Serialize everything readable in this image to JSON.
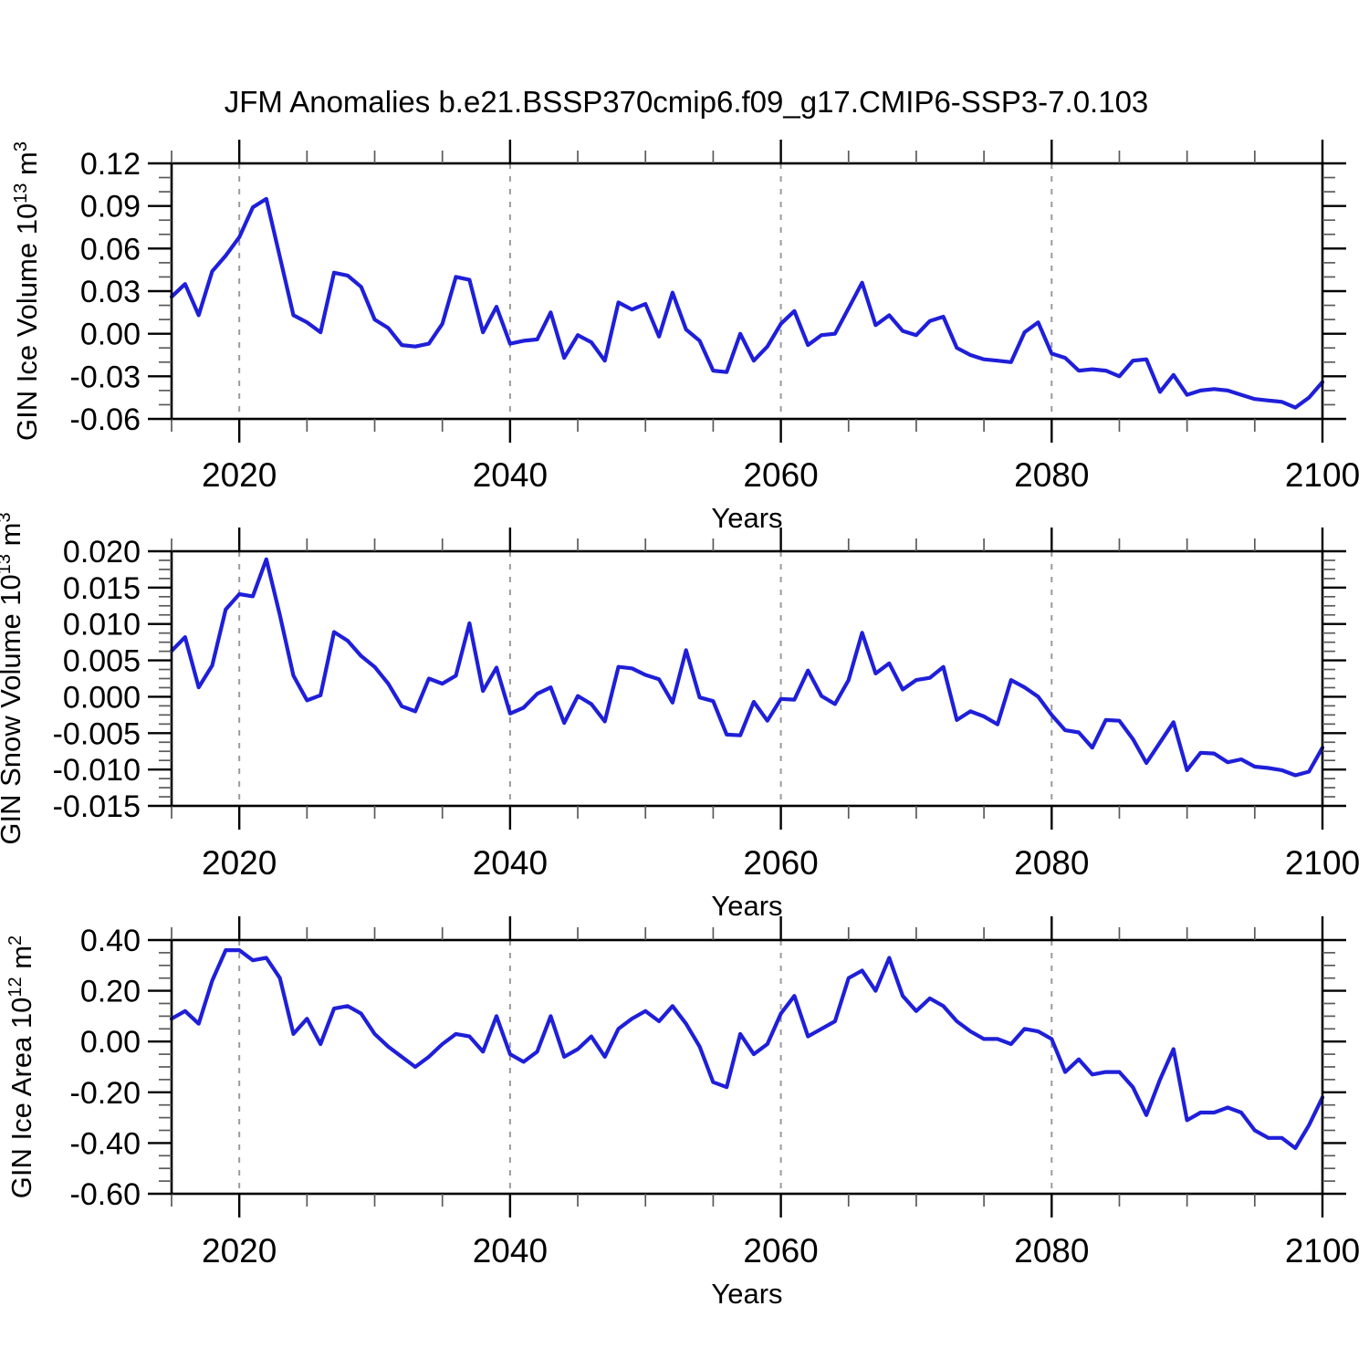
{
  "title": "JFM Anomalies b.e21.BSSP370cmip6.f09_g17.CMIP6-SSP3-7.0.103",
  "colors": {
    "line": "#1f1fd9",
    "axis": "#000000",
    "major_tick": "#000000",
    "minor_tick": "#5a5a5a",
    "grid": "#9a9a9a",
    "background": "#ffffff"
  },
  "chart_data": {
    "type": "line",
    "title": "JFM Anomalies b.e21.BSSP370cmip6.f09_g17.CMIP6-SSP3-7.0.103",
    "xlabel": "Years",
    "legend": "none",
    "grid": "dashed vertical lines at major x ticks except 2100",
    "x_range": [
      2015,
      2100
    ],
    "x_major_ticks": [
      2020,
      2040,
      2060,
      2080,
      2100
    ],
    "x_major_tick_labels": [
      "2020",
      "2040",
      "2060",
      "2080",
      "2100"
    ],
    "x_minor_step": 5,
    "x_gridlines": [
      2020,
      2040,
      2060,
      2080
    ],
    "years": [
      2015,
      2016,
      2017,
      2018,
      2019,
      2020,
      2021,
      2022,
      2023,
      2024,
      2025,
      2026,
      2027,
      2028,
      2029,
      2030,
      2031,
      2032,
      2033,
      2034,
      2035,
      2036,
      2037,
      2038,
      2039,
      2040,
      2041,
      2042,
      2043,
      2044,
      2045,
      2046,
      2047,
      2048,
      2049,
      2050,
      2051,
      2052,
      2053,
      2054,
      2055,
      2056,
      2057,
      2058,
      2059,
      2060,
      2061,
      2062,
      2063,
      2064,
      2065,
      2066,
      2067,
      2068,
      2069,
      2070,
      2071,
      2072,
      2073,
      2074,
      2075,
      2076,
      2077,
      2078,
      2079,
      2080,
      2081,
      2082,
      2083,
      2084,
      2085,
      2086,
      2087,
      2088,
      2089,
      2090,
      2091,
      2092,
      2093,
      2094,
      2095,
      2096,
      2097,
      2098,
      2099,
      2100
    ],
    "panels": [
      {
        "id": "ice-volume",
        "series_name": "GIN Ice Volume anomaly",
        "ylabel": "GIN Ice Volume 10¹³ m³",
        "ylabel_parts": [
          {
            "t": "GIN Ice Volume 10"
          },
          {
            "t": "13",
            "sup": true
          },
          {
            "t": " m"
          },
          {
            "t": "3",
            "sup": true
          }
        ],
        "ylim": [
          -0.06,
          0.12
        ],
        "yticks": [
          0.12,
          0.09,
          0.06,
          0.03,
          0.0,
          -0.03,
          -0.06
        ],
        "ytick_labels": [
          "0.12",
          "0.09",
          "0.06",
          "0.03",
          "0.00",
          "-0.03",
          "-0.06"
        ],
        "y_minor_step": 0.01,
        "values": [
          0.026,
          0.035,
          0.013,
          0.044,
          0.055,
          0.068,
          0.089,
          0.095,
          0.054,
          0.013,
          0.008,
          0.001,
          0.043,
          0.041,
          0.033,
          0.01,
          0.004,
          -0.008,
          -0.009,
          -0.007,
          0.007,
          0.04,
          0.038,
          0.001,
          0.019,
          -0.007,
          -0.005,
          -0.004,
          0.015,
          -0.017,
          -0.001,
          -0.006,
          -0.019,
          0.022,
          0.017,
          0.021,
          -0.002,
          0.029,
          0.003,
          -0.005,
          -0.026,
          -0.027,
          0.0,
          -0.019,
          -0.009,
          0.007,
          0.016,
          -0.008,
          -0.001,
          0.0,
          0.018,
          0.036,
          0.006,
          0.013,
          0.002,
          -0.001,
          0.009,
          0.012,
          -0.01,
          -0.015,
          -0.018,
          -0.019,
          -0.02,
          0.001,
          0.008,
          -0.014,
          -0.017,
          -0.026,
          -0.025,
          -0.026,
          -0.03,
          -0.019,
          -0.018,
          -0.041,
          -0.029,
          -0.043,
          -0.04,
          -0.039,
          -0.04,
          -0.043,
          -0.046,
          -0.047,
          -0.048,
          -0.052,
          -0.045,
          -0.034
        ]
      },
      {
        "id": "snow-volume",
        "series_name": "GIN Snow Volume anomaly",
        "ylabel": "GIN Snow Volume 10¹³ m³",
        "ylabel_parts": [
          {
            "t": "GIN Snow Volume 10"
          },
          {
            "t": "13",
            "sup": true
          },
          {
            "t": " m"
          },
          {
            "t": "3",
            "sup": true
          }
        ],
        "ylim": [
          -0.015,
          0.02
        ],
        "yticks": [
          0.02,
          0.015,
          0.01,
          0.005,
          0.0,
          -0.005,
          -0.01,
          -0.015
        ],
        "ytick_labels": [
          "0.020",
          "0.015",
          "0.010",
          "0.005",
          "0.000",
          "-0.005",
          "-0.010",
          "-0.015"
        ],
        "y_minor_step": 0.00125,
        "values": [
          0.0063,
          0.0082,
          0.0013,
          0.0043,
          0.012,
          0.0141,
          0.0138,
          0.0189,
          0.0112,
          0.0029,
          -0.0005,
          0.0002,
          0.0089,
          0.0077,
          0.0056,
          0.0041,
          0.0018,
          -0.0013,
          -0.002,
          0.0025,
          0.0018,
          0.0029,
          0.0101,
          0.0008,
          0.004,
          -0.0023,
          -0.0015,
          0.0004,
          0.0013,
          -0.0036,
          0.0001,
          -0.001,
          -0.0034,
          0.0041,
          0.0039,
          0.003,
          0.0024,
          -0.0008,
          0.0064,
          -0.0001,
          -0.0006,
          -0.0052,
          -0.0053,
          -0.0007,
          -0.0033,
          -0.0003,
          -0.0004,
          0.0036,
          0.0001,
          -0.001,
          0.0023,
          0.0088,
          0.0032,
          0.0046,
          0.001,
          0.0023,
          0.0026,
          0.0041,
          -0.0032,
          -0.002,
          -0.0027,
          -0.0038,
          0.0023,
          0.0013,
          0.0,
          -0.0025,
          -0.0046,
          -0.0049,
          -0.007,
          -0.0032,
          -0.0033,
          -0.0058,
          -0.0091,
          -0.0063,
          -0.0035,
          -0.0101,
          -0.0077,
          -0.0078,
          -0.009,
          -0.0086,
          -0.0096,
          -0.0098,
          -0.0101,
          -0.0108,
          -0.0103,
          -0.007
        ]
      },
      {
        "id": "ice-area",
        "series_name": "GIN Ice Area anomaly",
        "ylabel": "GIN Ice Area 10¹² m²",
        "ylabel_parts": [
          {
            "t": "GIN Ice Area 10"
          },
          {
            "t": "12",
            "sup": true
          },
          {
            "t": " m"
          },
          {
            "t": "2",
            "sup": true
          }
        ],
        "ylim": [
          -0.6,
          0.4
        ],
        "yticks": [
          0.4,
          0.2,
          0.0,
          -0.2,
          -0.4,
          -0.6
        ],
        "ytick_labels": [
          "0.40",
          "0.20",
          "0.00",
          "-0.20",
          "-0.40",
          "-0.60"
        ],
        "y_minor_step": 0.05,
        "values": [
          0.09,
          0.12,
          0.07,
          0.24,
          0.36,
          0.36,
          0.32,
          0.33,
          0.25,
          0.03,
          0.09,
          -0.01,
          0.13,
          0.14,
          0.11,
          0.03,
          -0.02,
          -0.06,
          -0.1,
          -0.06,
          -0.01,
          0.03,
          0.02,
          -0.04,
          0.1,
          -0.05,
          -0.08,
          -0.04,
          0.1,
          -0.06,
          -0.03,
          0.02,
          -0.06,
          0.05,
          0.09,
          0.12,
          0.08,
          0.14,
          0.07,
          -0.02,
          -0.16,
          -0.18,
          0.03,
          -0.05,
          -0.01,
          0.11,
          0.18,
          0.02,
          0.05,
          0.08,
          0.25,
          0.28,
          0.2,
          0.33,
          0.18,
          0.12,
          0.17,
          0.14,
          0.08,
          0.04,
          0.01,
          0.01,
          -0.01,
          0.05,
          0.04,
          0.01,
          -0.12,
          -0.07,
          -0.13,
          -0.12,
          -0.12,
          -0.18,
          -0.29,
          -0.15,
          -0.03,
          -0.31,
          -0.28,
          -0.28,
          -0.26,
          -0.28,
          -0.35,
          -0.38,
          -0.38,
          -0.42,
          -0.33,
          -0.22
        ]
      }
    ]
  }
}
